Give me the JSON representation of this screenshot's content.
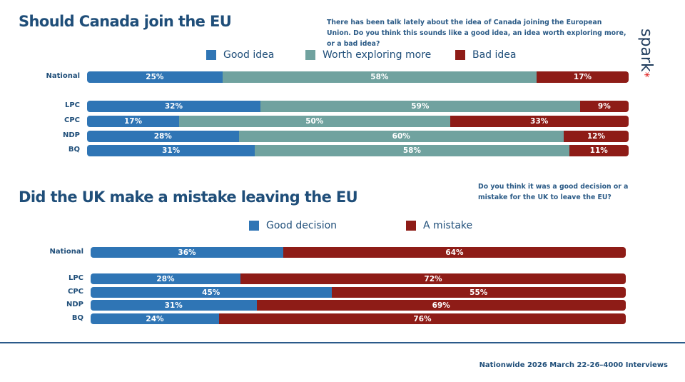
{
  "brand": {
    "logo": "spark",
    "asterisk": "*"
  },
  "footer": "Nationwide 2026 March 22-26–4000 Interviews",
  "chart_data": [
    {
      "type": "bar",
      "orientation": "horizontal-stacked",
      "title": "Should Canada join the EU",
      "question": "There has been talk lately about the idea of Canada joining the European Union.  Do you think this sounds like a good idea, an idea worth exploring more, or a bad idea?",
      "categories": [
        "National",
        "LPC",
        "CPC",
        "NDP",
        "BQ"
      ],
      "series": [
        {
          "name": "Good idea",
          "color": "#2f75b5",
          "values": [
            25,
            32,
            17,
            28,
            31
          ]
        },
        {
          "name": "Worth exploring more",
          "color": "#70a29f",
          "values": [
            58,
            59,
            50,
            60,
            58
          ]
        },
        {
          "name": "Bad idea",
          "color": "#8e1c17",
          "values": [
            17,
            9,
            33,
            12,
            11
          ]
        }
      ],
      "xlim": [
        0,
        100
      ],
      "legend": "top"
    },
    {
      "type": "bar",
      "orientation": "horizontal-stacked",
      "title": "Did the UK make a mistake leaving the EU",
      "question": "Do you think it was a good decision or a mistake for the UK to leave the EU?",
      "categories": [
        "National",
        "LPC",
        "CPC",
        "NDP",
        "BQ"
      ],
      "series": [
        {
          "name": "Good decision",
          "color": "#2f75b5",
          "values": [
            36,
            28,
            45,
            31,
            24
          ]
        },
        {
          "name": "A mistake",
          "color": "#8e1c17",
          "values": [
            64,
            72,
            55,
            69,
            76
          ]
        }
      ],
      "xlim": [
        0,
        100
      ],
      "legend": "top"
    }
  ]
}
